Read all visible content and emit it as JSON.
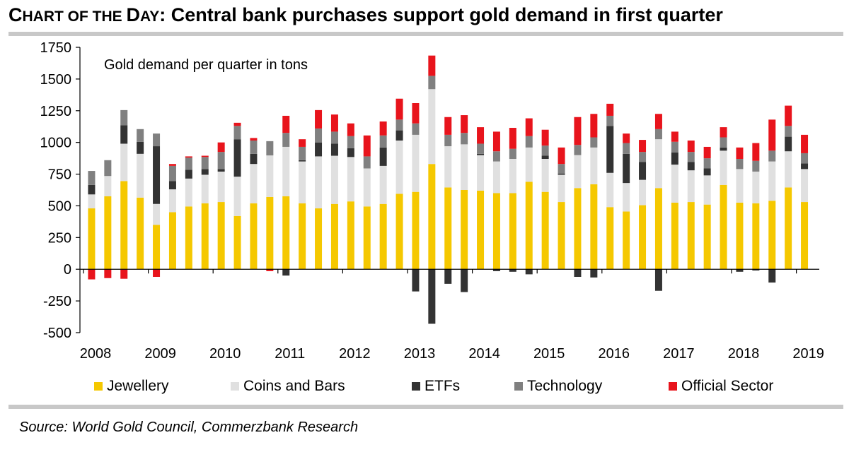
{
  "header": {
    "title_prefix_big1": "C",
    "title_prefix_small1": "HART OF THE ",
    "title_prefix_big2": "D",
    "title_prefix_small2": "AY",
    "title_rest": ": Central bank purchases support gold demand in first quarter"
  },
  "source": "Source: World Gold Council, Commerzbank Research",
  "colors": {
    "jewellery": "#f5c800",
    "coins_and_bars": "#e0e0e0",
    "etfs": "#333333",
    "technology": "#808080",
    "official_sector": "#e8141c",
    "rule": "#c8c8c8"
  },
  "chart_data": {
    "type": "bar",
    "stacked": true,
    "annotation": "Gold demand per quarter in tons",
    "ylim": [
      -500,
      1750
    ],
    "yticks": [
      -500,
      -250,
      0,
      250,
      500,
      750,
      1000,
      1250,
      1500,
      1750
    ],
    "ytick_labels": [
      "-500",
      "-250",
      "0",
      "250",
      "500",
      "750",
      "1000",
      "1250",
      "1500",
      "1750"
    ],
    "xticks": [
      "2008",
      "2009",
      "2010",
      "2011",
      "2012",
      "2013",
      "2014",
      "2015",
      "2016",
      "2017",
      "2018",
      "2019"
    ],
    "categories": [
      "2008 Q1",
      "2008 Q2",
      "2008 Q3",
      "2008 Q4",
      "2009 Q1",
      "2009 Q2",
      "2009 Q3",
      "2009 Q4",
      "2010 Q1",
      "2010 Q2",
      "2010 Q3",
      "2010 Q4",
      "2011 Q1",
      "2011 Q2",
      "2011 Q3",
      "2011 Q4",
      "2012 Q1",
      "2012 Q2",
      "2012 Q3",
      "2012 Q4",
      "2013 Q1",
      "2013 Q2",
      "2013 Q3",
      "2013 Q4",
      "2014 Q1",
      "2014 Q2",
      "2014 Q3",
      "2014 Q4",
      "2015 Q1",
      "2015 Q2",
      "2015 Q3",
      "2015 Q4",
      "2016 Q1",
      "2016 Q2",
      "2016 Q3",
      "2016 Q4",
      "2017 Q1",
      "2017 Q2",
      "2017 Q3",
      "2017 Q4",
      "2018 Q1",
      "2018 Q2",
      "2018 Q3",
      "2018 Q4",
      "2019 Q1"
    ],
    "series": [
      {
        "name": "Jewellery",
        "values": [
          480,
          575,
          695,
          565,
          350,
          450,
          495,
          520,
          530,
          420,
          520,
          570,
          575,
          520,
          480,
          515,
          535,
          495,
          515,
          595,
          610,
          830,
          645,
          625,
          620,
          600,
          600,
          690,
          610,
          530,
          640,
          670,
          490,
          455,
          505,
          640,
          525,
          530,
          510,
          665,
          525,
          520,
          540,
          645,
          530
        ]
      },
      {
        "name": "Coins and Bars",
        "values": [
          110,
          160,
          295,
          345,
          165,
          180,
          220,
          225,
          240,
          310,
          310,
          330,
          390,
          330,
          410,
          380,
          350,
          300,
          300,
          420,
          450,
          590,
          325,
          360,
          280,
          250,
          270,
          270,
          260,
          215,
          260,
          290,
          270,
          225,
          200,
          385,
          300,
          250,
          230,
          270,
          265,
          250,
          310,
          285,
          260
        ]
      },
      {
        "name": "ETFs",
        "values": [
          75,
          0,
          145,
          95,
          455,
          65,
          70,
          45,
          20,
          295,
          80,
          5,
          -50,
          10,
          110,
          95,
          70,
          0,
          145,
          80,
          -175,
          -430,
          -115,
          -180,
          10,
          -15,
          -20,
          -40,
          25,
          10,
          -60,
          -65,
          370,
          230,
          140,
          -170,
          95,
          65,
          55,
          25,
          -20,
          -10,
          -105,
          115,
          45
        ]
      },
      {
        "name": "Technology",
        "values": [
          110,
          125,
          120,
          100,
          100,
          120,
          95,
          95,
          135,
          105,
          105,
          105,
          110,
          105,
          110,
          95,
          95,
          95,
          95,
          85,
          90,
          105,
          90,
          90,
          80,
          80,
          80,
          90,
          80,
          75,
          80,
          80,
          80,
          85,
          80,
          80,
          85,
          80,
          80,
          80,
          80,
          85,
          85,
          85,
          80
        ]
      },
      {
        "name": "Official Sector",
        "values": [
          -80,
          -70,
          -75,
          0,
          -60,
          15,
          10,
          10,
          75,
          25,
          20,
          -15,
          135,
          60,
          145,
          135,
          100,
          165,
          110,
          165,
          160,
          160,
          140,
          140,
          130,
          155,
          165,
          140,
          125,
          130,
          220,
          185,
          95,
          75,
          95,
          120,
          80,
          90,
          90,
          80,
          90,
          140,
          245,
          160,
          145
        ]
      }
    ]
  },
  "legend": [
    {
      "label": "Jewellery"
    },
    {
      "label": "Coins and Bars"
    },
    {
      "label": "ETFs"
    },
    {
      "label": "Technology"
    },
    {
      "label": "Official Sector"
    }
  ]
}
